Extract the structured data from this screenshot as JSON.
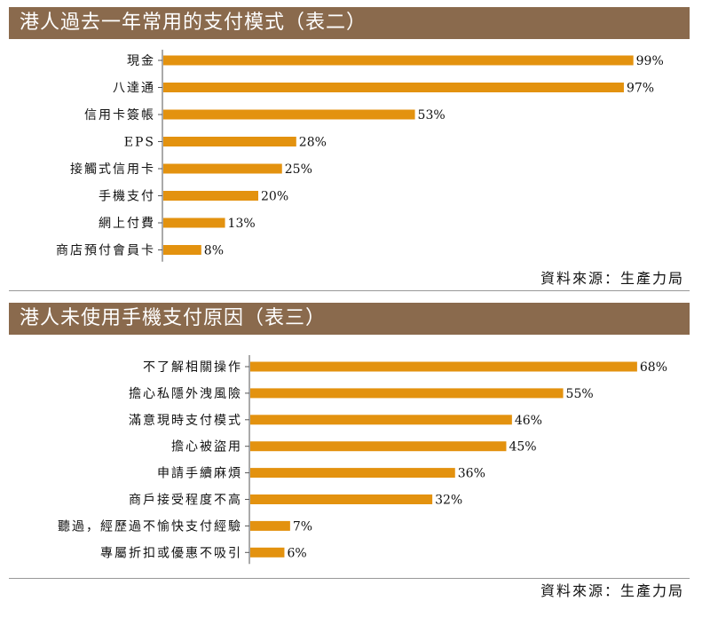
{
  "chart_data": [
    {
      "type": "bar",
      "orientation": "horizontal",
      "title": "港人過去一年常用的支付模式（表二）",
      "categories": [
        "現金",
        "八達通",
        "信用卡簽帳",
        "EPS",
        "接觸式信用卡",
        "手機支付",
        "網上付費",
        "商店預付會員卡"
      ],
      "values": [
        99,
        97,
        53,
        28,
        25,
        20,
        13,
        8
      ],
      "value_labels": [
        "99%",
        "97%",
        "53%",
        "28%",
        "25%",
        "20%",
        "13%",
        "8%"
      ],
      "xlim": [
        0,
        100
      ],
      "grid": false,
      "source": "資料來源：生產力局"
    },
    {
      "type": "bar",
      "orientation": "horizontal",
      "title": "港人未使用手機支付原因（表三）",
      "categories": [
        "不了解相關操作",
        "擔心私隱外洩風險",
        "滿意現時支付模式",
        "擔心被盜用",
        "申請手續麻煩",
        "商戶接受程度不高",
        "聽過，經歷過不愉快支付經驗",
        "專屬折扣或優惠不吸引"
      ],
      "values": [
        68,
        55,
        46,
        45,
        36,
        32,
        7,
        6
      ],
      "value_labels": [
        "68%",
        "55%",
        "46%",
        "45%",
        "36%",
        "32%",
        "7%",
        "6%"
      ],
      "xlim": [
        0,
        100
      ],
      "grid": false,
      "source": "資料來源：生產力局"
    }
  ],
  "colors": {
    "header": "#8a6a4d",
    "bar": "#e3920f",
    "axis": "#555555"
  }
}
